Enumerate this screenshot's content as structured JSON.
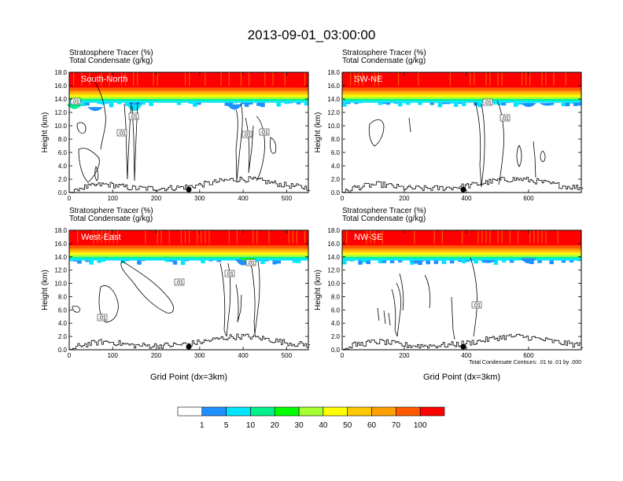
{
  "figure": {
    "title": "2013-09-01_03:00:00",
    "footnote": "Total Condensate Contours: .01 to .01 by .000"
  },
  "palette": [
    "#ffffff",
    "#1e90ff",
    "#00e5ff",
    "#00f08c",
    "#00ff00",
    "#a6ff32",
    "#ffff00",
    "#ffc800",
    "#ffa000",
    "#ff5a00",
    "#ff0000"
  ],
  "chart_data": [
    {
      "type": "heatmap",
      "name": "South-North",
      "title_lines": [
        "Stratosphere Tracer   (%)",
        "Total Condensate   (g/kg)"
      ],
      "xlabel": "",
      "ylabel": "Height (km)",
      "xlim": [
        0,
        550
      ],
      "ylim": [
        0,
        18
      ],
      "xticks": [
        0,
        100,
        200,
        300,
        400,
        500
      ],
      "yticks": [
        "0.0",
        "2.0",
        "4.0",
        "6.0",
        "8.0",
        "10.0",
        "12.0",
        "14.0",
        "16.0",
        "18.0"
      ],
      "contour_labels": [
        ".01",
        ".01",
        ".01",
        ".01",
        ".01"
      ],
      "marker_x": 275
    },
    {
      "type": "heatmap",
      "name": "SW-NE",
      "title_lines": [
        "Stratosphere Tracer   (%)",
        "Total Condensate   (g/kg)"
      ],
      "xlabel": "",
      "ylabel": "Height (km)",
      "xlim": [
        0,
        770
      ],
      "ylim": [
        0,
        18
      ],
      "xticks": [
        0,
        200,
        400,
        600
      ],
      "yticks": [
        "0.0",
        "2.0",
        "4.0",
        "6.0",
        "8.0",
        "10.0",
        "12.0",
        "14.0",
        "16.0",
        "18.0"
      ],
      "contour_labels": [
        ".01",
        ".01"
      ],
      "marker_x": 390
    },
    {
      "type": "heatmap",
      "name": "West-East",
      "title_lines": [
        "Stratosphere Tracer   (%)",
        "Total Condensate   (g/kg)"
      ],
      "xlabel": "Grid Point (dx=3km)",
      "ylabel": "Height (km)",
      "xlim": [
        0,
        550
      ],
      "ylim": [
        0,
        18
      ],
      "xticks": [
        0,
        100,
        200,
        300,
        400,
        500
      ],
      "yticks": [
        "0.0",
        "2.0",
        "4.0",
        "6.0",
        "8.0",
        "10.0",
        "12.0",
        "14.0",
        "16.0",
        "18.0"
      ],
      "contour_labels": [
        ".01",
        ".01",
        ".01",
        ".01"
      ],
      "marker_x": 275
    },
    {
      "type": "heatmap",
      "name": "NW-SE",
      "title_lines": [
        "Stratosphere Tracer   (%)",
        "Total Condensate   (g/kg)"
      ],
      "xlabel": "Grid Point (dx=3km)",
      "ylabel": "Height (km)",
      "xlim": [
        0,
        770
      ],
      "ylim": [
        0,
        18
      ],
      "xticks": [
        0,
        200,
        400,
        600
      ],
      "yticks": [
        "0.0",
        "2.0",
        "4.0",
        "6.0",
        "8.0",
        "10.0",
        "12.0",
        "14.0",
        "16.0",
        "18.0"
      ],
      "contour_labels": [
        ".01"
      ],
      "marker_x": 390
    }
  ],
  "colorbar": {
    "levels": [
      "1",
      "5",
      "10",
      "20",
      "30",
      "40",
      "50",
      "60",
      "70",
      "100"
    ]
  }
}
